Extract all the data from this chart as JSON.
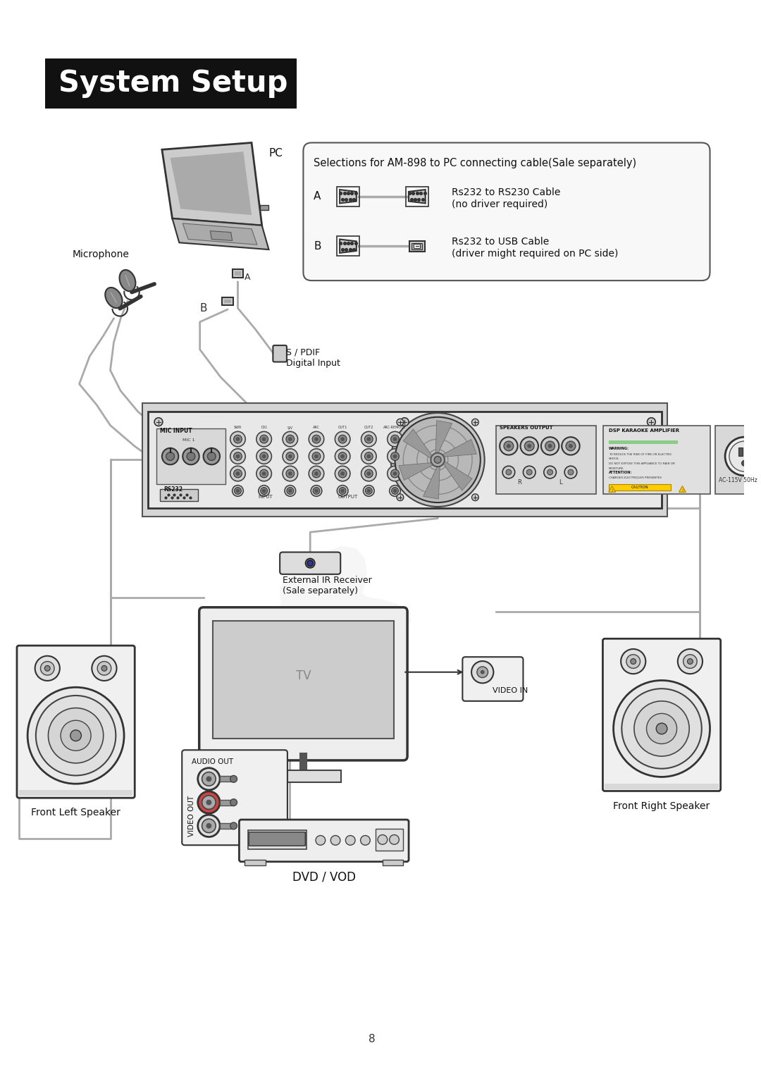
{
  "title": "System Setup",
  "page_number": "8",
  "bg_color": "#ffffff",
  "title_bg": "#111111",
  "title_text_color": "#ffffff",
  "title_fontsize": 30,
  "cable_box_title": "Selections for AM-898 to PC connecting cable(Sale separately)",
  "cable_A_label": "A",
  "cable_A_desc1": "Rs232 to RS230 Cable",
  "cable_A_desc2": "(no driver required)",
  "cable_B_label": "B",
  "cable_B_desc1": "Rs232 to USB Cable",
  "cable_B_desc2": "(driver might required on PC side)",
  "label_pc": "PC",
  "label_microphone": "Microphone",
  "label_spdif": "S / PDIF\nDigital Input",
  "label_B": "B",
  "label_A": "A",
  "label_ir": "External IR Receiver\n(Sale separately)",
  "label_tv": "TV",
  "label_video_in": "VIDEO IN",
  "label_front_left": "Front Left Speaker",
  "label_front_right": "Front Right Speaker",
  "label_audio_out": "AUDIO OUT",
  "label_video_out": "VIDEO OUT",
  "label_dvd": "DVD / VOD",
  "wire_color": "#aaaaaa",
  "outline_color": "#333333",
  "light_gray": "#dddddd",
  "mid_gray": "#888888",
  "dark_gray": "#444444"
}
